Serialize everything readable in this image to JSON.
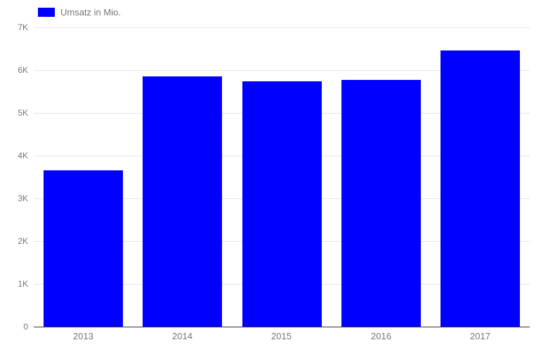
{
  "chart": {
    "legend": {
      "label": "Umsatz in Mio.",
      "swatch_color": "#0000ff"
    },
    "colors": {
      "bar": "#0000ff",
      "axis_line": "#333333",
      "gridline": "#e6e6e6",
      "label_text": "#757575"
    }
  },
  "chart_data": {
    "type": "bar",
    "title": "",
    "xlabel": "",
    "ylabel": "",
    "categories": [
      "2013",
      "2014",
      "2015",
      "2016",
      "2017"
    ],
    "series": [
      {
        "name": "Umsatz in Mio.",
        "color": "#0000ff",
        "values": [
          3650,
          5850,
          5740,
          5770,
          6460
        ]
      }
    ],
    "ylim": [
      0,
      7000
    ],
    "yticks": [
      {
        "value": 0,
        "label": "0"
      },
      {
        "value": 1000,
        "label": "1K"
      },
      {
        "value": 2000,
        "label": "2K"
      },
      {
        "value": 3000,
        "label": "3K"
      },
      {
        "value": 4000,
        "label": "4K"
      },
      {
        "value": 5000,
        "label": "5K"
      },
      {
        "value": 6000,
        "label": "6K"
      },
      {
        "value": 7000,
        "label": "7K"
      }
    ],
    "grid": true,
    "legend_position": "top-left"
  }
}
